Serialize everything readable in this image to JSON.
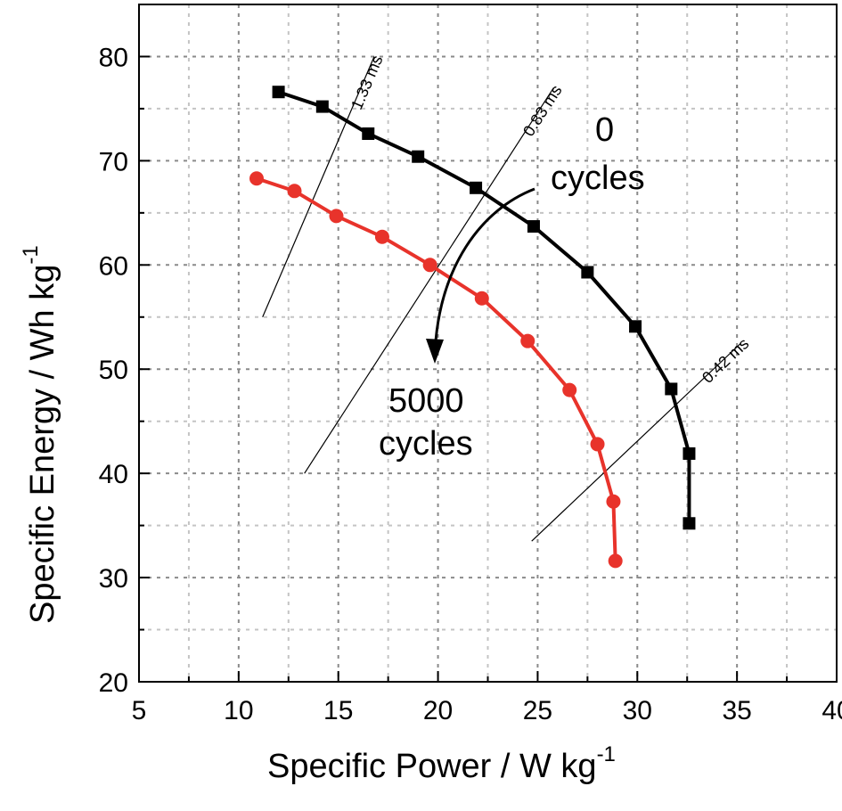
{
  "chart_data": {
    "type": "line",
    "xlabel": "Specific Power / W kg",
    "xlabel_sup": "-1",
    "ylabel": "Specific Energy / Wh kg",
    "ylabel_sup": "-1",
    "xlim": [
      5,
      40
    ],
    "ylim": [
      20,
      85
    ],
    "xticks": [
      5,
      10,
      15,
      20,
      25,
      30,
      35,
      40
    ],
    "yticks": [
      20,
      30,
      40,
      50,
      60,
      70,
      80
    ],
    "grid": true,
    "series": [
      {
        "color": "#000000",
        "marker": "square",
        "x": [
          12.0,
          14.2,
          16.5,
          19.0,
          21.9,
          24.8,
          27.5,
          29.9,
          31.7,
          32.6,
          32.6
        ],
        "y": [
          76.6,
          75.2,
          72.6,
          70.4,
          67.4,
          63.7,
          59.3,
          54.1,
          48.1,
          41.9,
          35.2
        ]
      },
      {
        "color": "#e8332b",
        "marker": "circle",
        "x": [
          10.9,
          12.8,
          14.9,
          17.2,
          19.6,
          22.2,
          24.5,
          26.6,
          28.0,
          28.8,
          28.9
        ],
        "y": [
          68.3,
          67.1,
          64.7,
          62.7,
          60.0,
          56.8,
          52.7,
          48.0,
          42.8,
          37.3,
          31.6
        ]
      }
    ],
    "time_lines": [
      {
        "label": "1.33 ms",
        "x1": 11.2,
        "y1": 55.0,
        "x2": 16.8,
        "y2": 80.0
      },
      {
        "label": "0.83 ms",
        "x1": 13.3,
        "y1": 40.0,
        "x2": 25.8,
        "y2": 77.0
      },
      {
        "label": "0.42 ms",
        "x1": 24.7,
        "y1": 33.5,
        "x2": 35.2,
        "y2": 52.5
      }
    ],
    "annotations": {
      "top_number": "0",
      "top_word": "cycles",
      "bottom_number": "5000",
      "bottom_word": "cycles"
    }
  }
}
